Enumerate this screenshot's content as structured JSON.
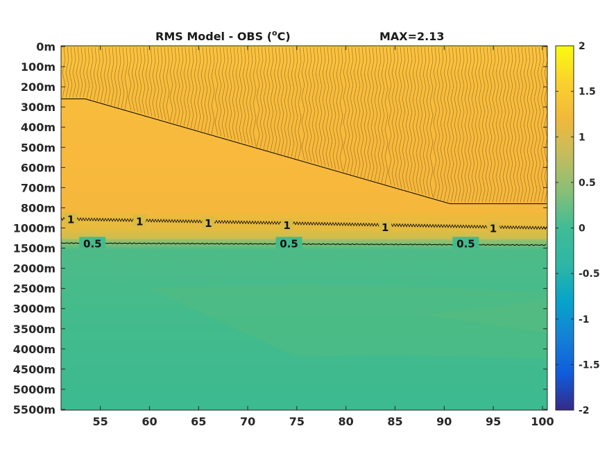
{
  "chart_data": {
    "type": "heatmap",
    "title": {
      "main": "RMS Model - OBS (",
      "superscript": "o",
      "unit": "C)",
      "max_label": "MAX=2.13"
    },
    "xlabel": "",
    "ylabel": "",
    "x_range": [
      51,
      100.5
    ],
    "x_ticks": [
      "55",
      "60",
      "65",
      "70",
      "75",
      "80",
      "85",
      "90",
      "95",
      "100"
    ],
    "y_ticks": [
      "0m",
      "100m",
      "200m",
      "300m",
      "400m",
      "500m",
      "600m",
      "700m",
      "800m",
      "1000m",
      "1500m",
      "2000m",
      "2500m",
      "3000m",
      "3500m",
      "4000m",
      "4500m",
      "5000m",
      "5500m"
    ],
    "y_scale": "piecewise (0-800m and 1000-5500m stretched)",
    "colormap": "parula",
    "clim": [
      -2,
      2
    ],
    "colorbar": {
      "ticks": [
        "2",
        "1.5",
        "1",
        "0.5",
        "0",
        "-0.5",
        "-1",
        "-1.5",
        "-2"
      ]
    },
    "contour_levels": [
      0.5,
      1,
      1.5
    ],
    "contour_labels": [
      {
        "text": "0.5",
        "x": 53,
        "depth": "1400m"
      },
      {
        "text": "0.5",
        "x": 73,
        "depth": "1400m"
      },
      {
        "text": "0.5",
        "x": 91,
        "depth": "1400m"
      },
      {
        "text": "1",
        "x": 51.5,
        "depth": "900m"
      },
      {
        "text": "1",
        "x": 58.5,
        "depth": "920m"
      },
      {
        "text": "1",
        "x": 65.5,
        "depth": "940m"
      },
      {
        "text": "1",
        "x": 73.5,
        "depth": "960m"
      },
      {
        "text": "1",
        "x": 83.5,
        "depth": "980m"
      },
      {
        "text": "1",
        "x": 94.5,
        "depth": "990m"
      }
    ],
    "grid": false,
    "legend": "colorbar-right"
  },
  "colors": {
    "upper_layer": "#f9b93a",
    "upper_layer_light": "#fbc23e",
    "transition_1000m": "#e9bb3c",
    "lower_layer": "#3fba8e",
    "lower_layer_light": "#5cbd7c",
    "contour": "#000000"
  }
}
